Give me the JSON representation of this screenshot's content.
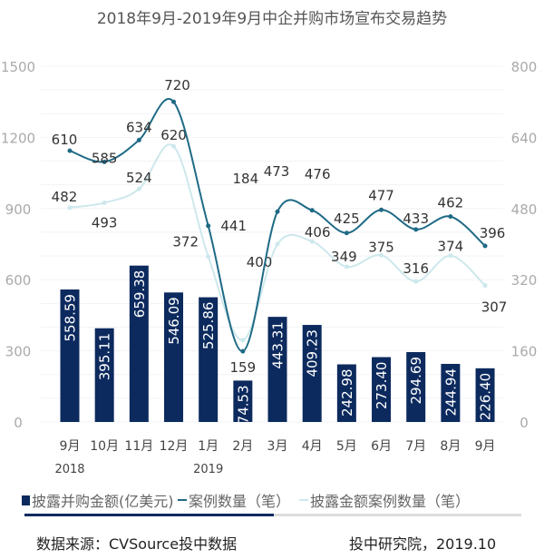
{
  "chart_data": {
    "type": "bar+line",
    "title": "2018年9月-2019年9月中企并购市场宣布交易趋势",
    "categories": [
      "9月",
      "10月",
      "11月",
      "12月",
      "1月",
      "2月",
      "3月",
      "4月",
      "5月",
      "6月",
      "7月",
      "8月",
      "9月"
    ],
    "year_labels": [
      "2018",
      "",
      "",
      "",
      "2019",
      "",
      "",
      "",
      "",
      "",
      "",
      "",
      ""
    ],
    "left_axis": {
      "ylim": [
        0,
        1500
      ],
      "ticks": [
        "0",
        "300",
        "600",
        "900",
        "1200",
        "1500"
      ]
    },
    "right_axis": {
      "ylim": [
        0,
        800
      ],
      "ticks": [
        "0",
        "160",
        "320",
        "480",
        "640",
        "800"
      ]
    },
    "series": [
      {
        "name": "披露并购金额(亿美元)",
        "type": "bar",
        "axis": "left",
        "color": "#0c2a5e",
        "values": [
          558.59,
          395.11,
          659.38,
          546.09,
          525.86,
          174.53,
          443.31,
          409.23,
          242.98,
          273.4,
          294.69,
          244.94,
          226.4
        ],
        "labels": [
          "558.59",
          "395.11",
          "659.38",
          "546.09",
          "525.86",
          "174.53",
          "443.31",
          "409.23",
          "242.98",
          "273.40",
          "294.69",
          "244.94",
          "226.40"
        ]
      },
      {
        "name": "案例数量（笔）",
        "type": "line",
        "axis": "right",
        "color": "#1f6a86",
        "values": [
          610,
          585,
          634,
          720,
          441,
          159,
          473,
          476,
          425,
          477,
          433,
          462,
          396
        ]
      },
      {
        "name": "披露金额案例数量（笔）",
        "type": "line",
        "axis": "right",
        "color": "#cde8ec",
        "values": [
          482,
          493,
          524,
          620,
          372,
          184,
          400,
          406,
          349,
          375,
          316,
          374,
          307
        ]
      }
    ],
    "grid": true
  },
  "footer": {
    "source": "数据来源：CVSource投中数据",
    "publisher": "投中研究院，2019.10"
  }
}
